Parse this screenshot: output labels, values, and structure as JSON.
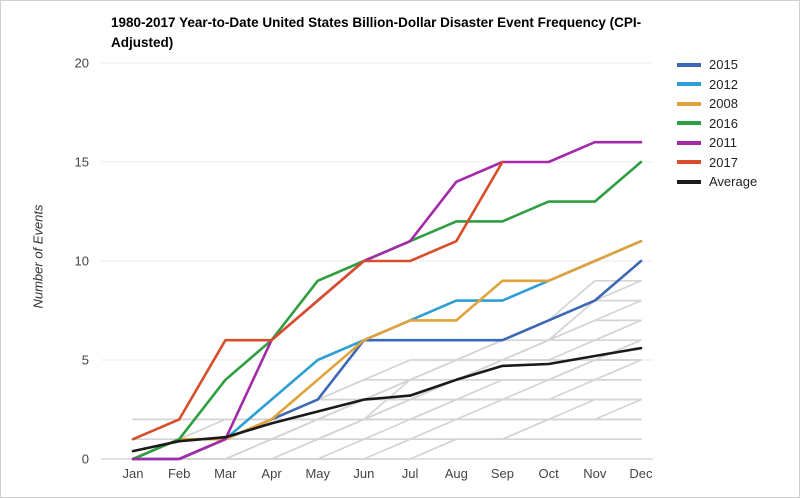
{
  "chart_data": {
    "type": "line",
    "title": "1980-2017 Year-to-Date United States Billion-Dollar Disaster Event Frequency (CPI-Adjusted)",
    "xlabel": "",
    "ylabel": "Number of Events",
    "categories": [
      "Jan",
      "Feb",
      "Mar",
      "Apr",
      "May",
      "Jun",
      "Jul",
      "Aug",
      "Sep",
      "Oct",
      "Nov",
      "Dec"
    ],
    "ylim": [
      0,
      20
    ],
    "yticks": [
      0,
      5,
      10,
      15,
      20
    ],
    "grid": true,
    "legend_position": "right",
    "series": [
      {
        "name": "2015",
        "color": "#3d68b5",
        "values": [
          0,
          0,
          1,
          2,
          3,
          6,
          6,
          6,
          6,
          7,
          8,
          10
        ]
      },
      {
        "name": "2012",
        "color": "#2e9fd4",
        "values": [
          0,
          0,
          1,
          3,
          5,
          6,
          7,
          8,
          8,
          9,
          10,
          11
        ]
      },
      {
        "name": "2008",
        "color": "#e2a23b",
        "values": [
          0,
          1,
          1,
          2,
          4,
          6,
          7,
          7,
          9,
          9,
          10,
          11
        ]
      },
      {
        "name": "2016",
        "color": "#2f9e41",
        "values": [
          0,
          1,
          4,
          6,
          9,
          10,
          11,
          12,
          12,
          13,
          13,
          15
        ]
      },
      {
        "name": "2011",
        "color": "#a32ba8",
        "values": [
          0,
          0,
          1,
          6,
          8,
          10,
          11,
          14,
          15,
          15,
          16,
          16
        ]
      },
      {
        "name": "2017",
        "color": "#d74e2c",
        "values": [
          1,
          2,
          6,
          6,
          8,
          10,
          10,
          11,
          15,
          null,
          null,
          null
        ]
      },
      {
        "name": "Average",
        "color": "#1a1a1a",
        "values": [
          0.4,
          0.9,
          1.1,
          1.8,
          2.4,
          3,
          3.2,
          4,
          4.7,
          4.8,
          5.2,
          5.6
        ]
      }
    ],
    "background_series": {
      "name": "other-years-1980-2014",
      "color": "#d4d4d4",
      "lines": [
        [
          0,
          0,
          0,
          0,
          0,
          0,
          1,
          1,
          1,
          1,
          1,
          1
        ],
        [
          0,
          0,
          0,
          0,
          0,
          1,
          1,
          1,
          1,
          2,
          2,
          2
        ],
        [
          0,
          0,
          0,
          1,
          1,
          1,
          1,
          2,
          2,
          2,
          2,
          2
        ],
        [
          0,
          0,
          1,
          1,
          1,
          2,
          2,
          2,
          2,
          2,
          3,
          3
        ],
        [
          0,
          0,
          0,
          0,
          1,
          1,
          2,
          2,
          3,
          3,
          3,
          3
        ],
        [
          0,
          1,
          1,
          1,
          2,
          2,
          2,
          3,
          3,
          3,
          4,
          4
        ],
        [
          0,
          0,
          1,
          1,
          2,
          2,
          3,
          3,
          3,
          4,
          4,
          4
        ],
        [
          0,
          0,
          0,
          1,
          1,
          2,
          2,
          3,
          4,
          4,
          4,
          5
        ],
        [
          0,
          0,
          1,
          2,
          2,
          3,
          3,
          4,
          4,
          4,
          5,
          5
        ],
        [
          0,
          1,
          1,
          2,
          2,
          3,
          4,
          4,
          5,
          5,
          5,
          6
        ],
        [
          0,
          0,
          1,
          1,
          2,
          3,
          3,
          4,
          5,
          5,
          6,
          6
        ],
        [
          0,
          0,
          0,
          1,
          2,
          3,
          4,
          4,
          5,
          6,
          6,
          7
        ],
        [
          0,
          1,
          1,
          2,
          3,
          3,
          4,
          5,
          5,
          6,
          7,
          7
        ],
        [
          0,
          0,
          1,
          2,
          3,
          4,
          4,
          5,
          6,
          6,
          7,
          8
        ],
        [
          0,
          0,
          0,
          0,
          1,
          2,
          3,
          4,
          5,
          6,
          8,
          8
        ],
        [
          0,
          1,
          2,
          2,
          3,
          4,
          5,
          5,
          6,
          7,
          8,
          9
        ],
        [
          0,
          0,
          1,
          1,
          2,
          2,
          4,
          5,
          6,
          7,
          9,
          9
        ],
        [
          2,
          2,
          2,
          2,
          3,
          3,
          3,
          4,
          4,
          4,
          5,
          5
        ],
        [
          0,
          0,
          0,
          0,
          0,
          0,
          0,
          1,
          1,
          2,
          2,
          3
        ],
        [
          1,
          1,
          1,
          2,
          2,
          2,
          3,
          3,
          3,
          3,
          3,
          3
        ]
      ]
    }
  }
}
